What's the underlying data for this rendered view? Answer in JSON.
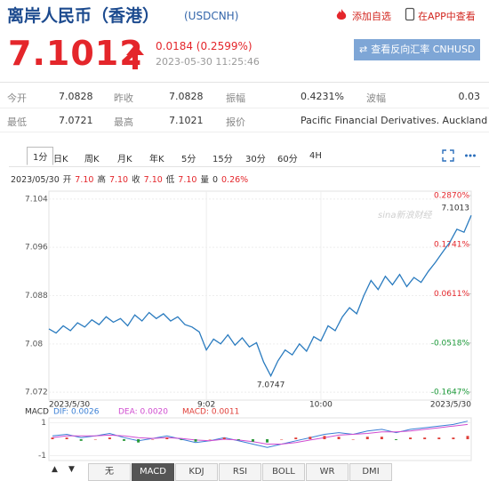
{
  "header": {
    "title": "离岸人民币（香港）",
    "code": "(USDCNH)",
    "add_watch": "添加自选",
    "view_app": "在APP中查看"
  },
  "quote": {
    "price": "7.1012",
    "change": "0.0184 (0.2599%)",
    "time": "2023-05-30 11:25:46",
    "reverse_button": "查看反向汇率 CNHUSD"
  },
  "table": {
    "rows": [
      [
        "今开",
        "7.0828",
        "昨收",
        "7.0828",
        "振幅",
        "0.4231%",
        "波幅",
        "0.03"
      ],
      [
        "最低",
        "7.0721",
        "最高",
        "7.1021",
        "报价",
        "Pacific Financial Derivatives. Auckland"
      ]
    ]
  },
  "period_tabs": {
    "items": [
      "1分",
      "日K",
      "周K",
      "月K",
      "年K",
      "5分",
      "15分",
      "30分",
      "60分",
      "4H"
    ],
    "selected": 0
  },
  "info": {
    "date": "2023/05/30",
    "items": [
      {
        "label": "开",
        "value": "7.10"
      },
      {
        "label": "高",
        "value": "7.10"
      },
      {
        "label": "收",
        "value": "7.10"
      },
      {
        "label": "低",
        "value": "7.10"
      },
      {
        "label": "量",
        "value": "0"
      }
    ],
    "change": "0.26%"
  },
  "indicator_tabs": {
    "up": "▲",
    "down": "▼",
    "items": [
      "无",
      "MACD",
      "KDJ",
      "RSI",
      "BOLL",
      "WR",
      "DMI"
    ],
    "selected": 1
  },
  "chart_data": [
    {
      "type": "line",
      "watermark": "sina新浪财经",
      "color": "#2a7bbf",
      "categories": [
        "2023/5/30",
        null,
        null,
        null,
        null,
        null,
        null,
        null,
        null,
        null,
        null,
        null,
        null,
        null,
        null,
        null,
        null,
        null,
        null,
        null,
        null,
        null,
        "9:02",
        null,
        null,
        null,
        null,
        null,
        null,
        null,
        null,
        null,
        null,
        null,
        null,
        null,
        null,
        null,
        "10:00",
        null,
        null,
        null,
        null,
        null,
        null,
        null,
        null,
        null,
        null,
        null,
        null,
        null,
        null,
        null,
        null,
        null,
        null,
        null,
        null,
        "2023/5/30"
      ],
      "values": [
        7.0825,
        7.0818,
        7.083,
        7.0822,
        7.0835,
        7.0828,
        7.084,
        7.0832,
        7.0845,
        7.0836,
        7.0842,
        7.083,
        7.0848,
        7.0838,
        7.0852,
        7.0842,
        7.085,
        7.0838,
        7.0845,
        7.0832,
        7.0828,
        7.082,
        7.079,
        7.0808,
        7.08,
        7.0815,
        7.0798,
        7.081,
        7.0795,
        7.0802,
        7.077,
        7.0747,
        7.0772,
        7.079,
        7.0782,
        7.08,
        7.0788,
        7.0812,
        7.0805,
        7.083,
        7.0822,
        7.0845,
        7.086,
        7.085,
        7.088,
        7.0905,
        7.089,
        7.0912,
        7.0898,
        7.0915,
        7.0895,
        7.091,
        7.0902,
        7.092,
        7.0935,
        7.0952,
        7.0968,
        7.099,
        7.0985,
        7.1013
      ],
      "value_labels": [
        null,
        null,
        null,
        null,
        null,
        null,
        null,
        null,
        null,
        null,
        null,
        null,
        null,
        null,
        null,
        null,
        null,
        null,
        null,
        null,
        null,
        null,
        null,
        null,
        null,
        null,
        null,
        null,
        null,
        null,
        null,
        "7.0747",
        null,
        null,
        null,
        null,
        null,
        null,
        null,
        null,
        null,
        null,
        null,
        null,
        null,
        null,
        null,
        null,
        null,
        null,
        null,
        null,
        null,
        null,
        null,
        null,
        null,
        null,
        null,
        "7.1013"
      ],
      "ylim": [
        7.0707,
        7.1053
      ],
      "yticks": [
        7.072,
        7.08,
        7.088,
        7.096,
        7.104
      ],
      "y2lim": [
        -0.1831,
        0.2972
      ],
      "y2ticks": [
        {
          "value": -0.1647,
          "label": "-0.1647%"
        },
        {
          "value": -0.0518,
          "label": "-0.0518%"
        },
        {
          "value": 0.0611,
          "label": "0.0611%"
        },
        {
          "value": 0.1741,
          "label": "0.1741%"
        },
        {
          "value": 0.287,
          "label": "0.2870%"
        }
      ],
      "grid": true
    },
    {
      "type": "macd",
      "title": "MACD",
      "ylim": [
        -1.3,
        1.3
      ],
      "yticks": [
        -1,
        1
      ],
      "series": [
        {
          "name": "DIF: 0.0026",
          "color": "#3a7fd5",
          "values": [
            0.2,
            0.3,
            0.1,
            0.2,
            0.35,
            0.1,
            -0.1,
            0.05,
            0.2,
            0.0,
            -0.2,
            -0.1,
            0.1,
            -0.1,
            -0.3,
            -0.5,
            -0.3,
            -0.1,
            0.1,
            0.3,
            0.4,
            0.3,
            0.5,
            0.6,
            0.4,
            0.6,
            0.7,
            0.8,
            0.9,
            1.1
          ]
        },
        {
          "name": "DEA: 0.0020",
          "color": "#d04cd0",
          "values": [
            0.1,
            0.2,
            0.2,
            0.2,
            0.25,
            0.2,
            0.1,
            0.05,
            0.1,
            0.05,
            -0.05,
            -0.1,
            0.0,
            -0.05,
            -0.15,
            -0.3,
            -0.3,
            -0.2,
            -0.05,
            0.1,
            0.25,
            0.3,
            0.35,
            0.45,
            0.45,
            0.5,
            0.6,
            0.7,
            0.8,
            0.9
          ]
        },
        {
          "name": "MACD: 0.0011",
          "color": "#e0403a",
          "negative_color": "#2a9a3a",
          "bars": true,
          "values": [
            0.1,
            0.1,
            -0.1,
            0,
            0.1,
            -0.1,
            -0.2,
            0,
            0.1,
            -0.05,
            -0.15,
            0,
            0.1,
            -0.05,
            -0.15,
            -0.2,
            0,
            0.1,
            0.15,
            0.2,
            0.15,
            0,
            0.15,
            0.15,
            -0.05,
            0.1,
            0.1,
            0.1,
            0.1,
            0.2
          ]
        }
      ]
    }
  ]
}
